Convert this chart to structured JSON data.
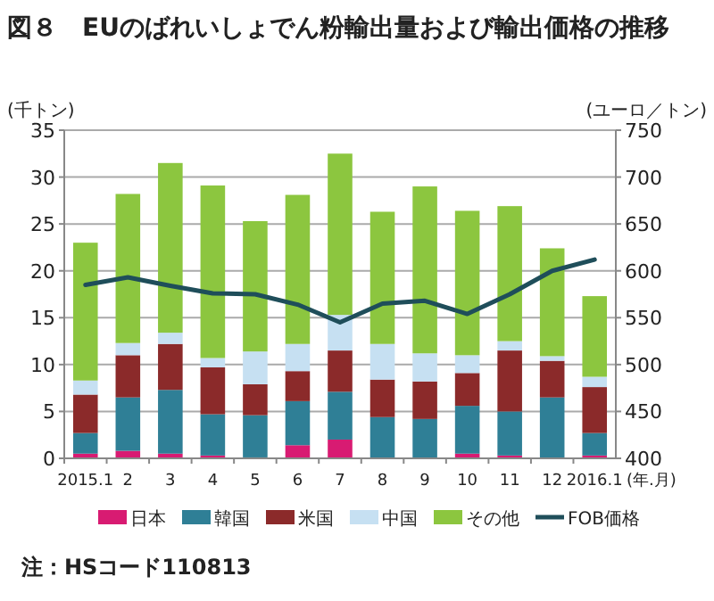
{
  "chart_data": {
    "type": "bar",
    "title": "図８　EUのばれいしょでん粉輸出量および輸出価格の推移",
    "xlabel": "(年.月)",
    "ylabel": "(千トン)",
    "y2label": "(ユーロ／トン)",
    "categories": [
      "2015.1",
      "2",
      "3",
      "4",
      "5",
      "6",
      "7",
      "8",
      "9",
      "10",
      "11",
      "12",
      "2016.1"
    ],
    "stacked": true,
    "series": [
      {
        "name": "日本",
        "color": "#d81b72",
        "values": [
          0.5,
          0.8,
          0.5,
          0.3,
          0.1,
          1.4,
          2.0,
          0,
          0,
          0.5,
          0.3,
          0,
          0.3
        ]
      },
      {
        "name": "韓国",
        "color": "#2f7f96",
        "values": [
          2.2,
          5.7,
          6.8,
          4.4,
          4.5,
          4.7,
          5.1,
          4.4,
          4.2,
          5.1,
          4.7,
          6.5,
          2.4
        ]
      },
      {
        "name": "米国",
        "color": "#8b2a2a",
        "values": [
          4.1,
          4.5,
          4.9,
          5.0,
          3.3,
          3.2,
          4.4,
          4.0,
          4.0,
          3.5,
          6.5,
          3.9,
          4.9
        ]
      },
      {
        "name": "中国",
        "color": "#c6e0f2",
        "values": [
          1.5,
          1.3,
          1.2,
          1.0,
          3.5,
          2.9,
          3.8,
          3.8,
          3.0,
          1.9,
          1.0,
          0.5,
          1.1
        ]
      },
      {
        "name": "その他",
        "color": "#8cc63f",
        "values": [
          14.7,
          15.9,
          18.1,
          18.4,
          13.9,
          15.9,
          17.2,
          14.1,
          17.8,
          15.4,
          14.4,
          11.5,
          8.6
        ]
      },
      {
        "name": "FOB価格",
        "type": "line",
        "axis": "y2",
        "color": "#1f4e5a",
        "values": [
          585,
          593,
          584,
          576,
          575,
          564,
          545,
          565,
          568,
          554,
          575,
          600,
          612
        ]
      }
    ],
    "ylim": [
      0,
      35
    ],
    "yticks": [
      0,
      5,
      10,
      15,
      20,
      25,
      30,
      35
    ],
    "y2lim": [
      400,
      750
    ],
    "y2ticks": [
      400,
      450,
      500,
      550,
      600,
      650,
      700,
      750
    ],
    "grid": "y",
    "legend": "bottom",
    "annotations": [
      "注：HSコード110813"
    ]
  }
}
